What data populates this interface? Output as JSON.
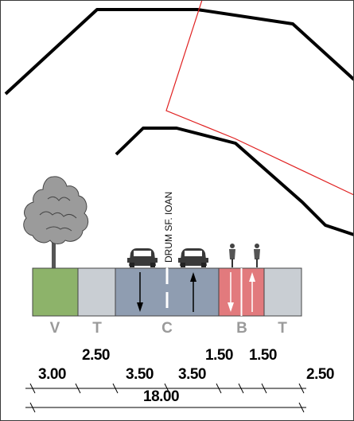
{
  "street": {
    "name": "DRUM SF. IOAN"
  },
  "zones": [
    {
      "code": "V",
      "color": "#8db36a"
    },
    {
      "code": "T",
      "color": "#c9ced3"
    },
    {
      "code": "C",
      "color": "#8f9db1"
    },
    {
      "code": "B",
      "color": "#e27a7d"
    },
    {
      "code": "T",
      "color": "#c9ced3"
    }
  ],
  "dimensions": {
    "segments": [
      "3.00",
      "2.50",
      "3.50",
      "3.50",
      "1.50",
      "1.50",
      "2.50"
    ],
    "total": "18.00"
  },
  "map": {
    "outline_color": "#000000",
    "highlight_color": "#e02020"
  }
}
